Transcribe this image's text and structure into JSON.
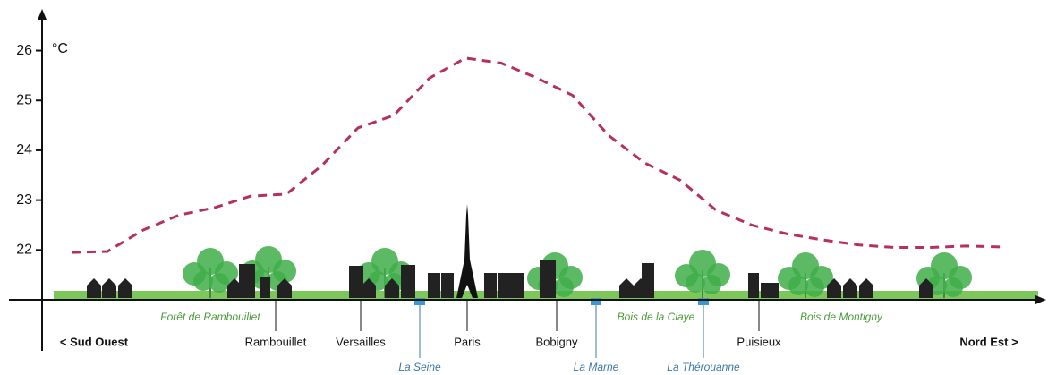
{
  "chart_data": {
    "type": "line",
    "unit": "°C",
    "categories": [
      null,
      null,
      null,
      null,
      null,
      null,
      null,
      null,
      null,
      null,
      null,
      null,
      null,
      null,
      null,
      null,
      null,
      null,
      null,
      null,
      null,
      null,
      null,
      null,
      null,
      null,
      null
    ],
    "values": [
      21.95,
      21.97,
      22.4,
      22.7,
      22.85,
      23.08,
      23.12,
      23.7,
      24.45,
      24.7,
      25.45,
      25.85,
      25.75,
      25.45,
      25.1,
      24.3,
      23.75,
      23.4,
      22.8,
      22.5,
      22.32,
      22.2,
      22.1,
      22.05,
      22.05,
      22.08,
      22.06
    ],
    "color": "#b5305f",
    "ylim": [
      21,
      26.8
    ],
    "yticks": [
      22,
      23,
      24,
      25,
      26
    ],
    "directions": [
      "< Sud Ouest",
      "Nord Est >"
    ],
    "places": [
      "Rambouillet",
      "Versailles",
      "Paris",
      "Bobigny",
      "Puisieux"
    ],
    "forests": [
      "Forêt de Rambouillet",
      "Bois de la Claye",
      "Bois de Montigny"
    ],
    "rivers": [
      "La Seine",
      "La Marne",
      "La Thérouanne"
    ]
  }
}
